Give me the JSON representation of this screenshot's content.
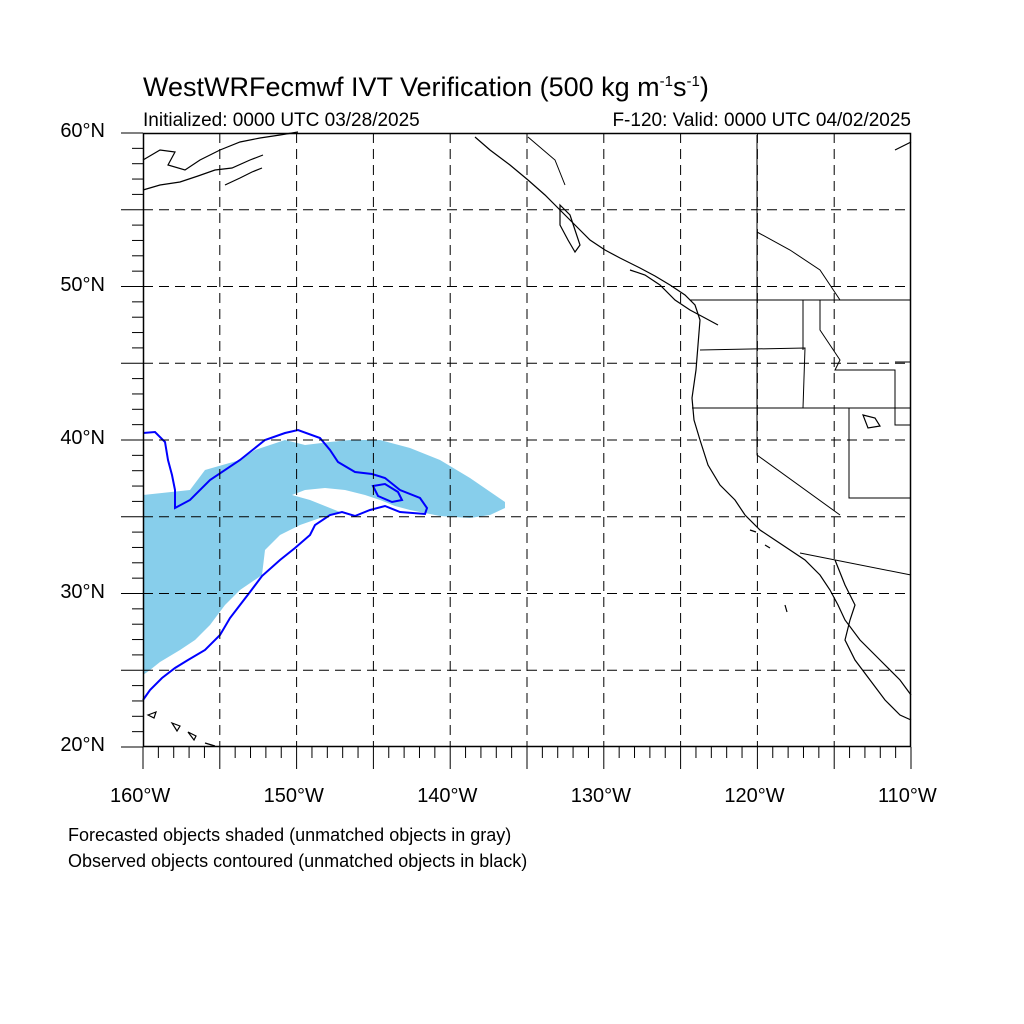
{
  "title": {
    "prefix": "WestWRFecmwf IVT Verification (500 kg m",
    "exp1": "-1",
    "mid": "s",
    "exp2": "-1",
    "suffix": ")"
  },
  "initialized": "Initialized: 0000 UTC 03/28/2025",
  "valid": "F-120: Valid: 0000 UTC 04/02/2025",
  "notes": {
    "line1": "Forecasted objects shaded (unmatched objects in gray)",
    "line2": "Observed objects contoured (unmatched objects in black)"
  },
  "map": {
    "lat_range": [
      20,
      60
    ],
    "lon_range": [
      -160,
      -110
    ],
    "lat_labels": [
      "20°N",
      "30°N",
      "40°N",
      "50°N",
      "60°N"
    ],
    "lon_labels": [
      "160°W",
      "150°W",
      "140°W",
      "130°W",
      "120°W",
      "110°W"
    ],
    "grid": "dashed, every 5°",
    "colors": {
      "forecast_fill": "#87ceeb",
      "observed_contour": "#0000ff",
      "coastline": "#000000"
    }
  }
}
